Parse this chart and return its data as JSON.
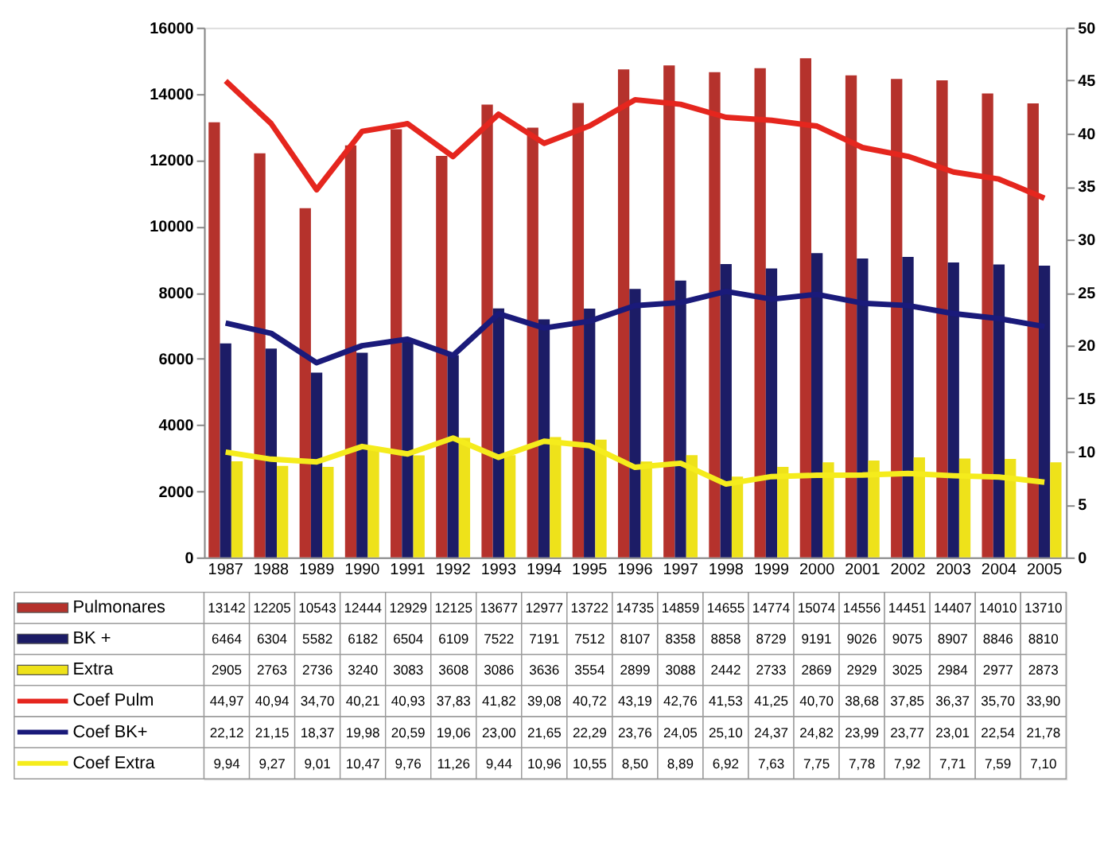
{
  "chart_data": {
    "type": "bar",
    "categories": [
      "1987",
      "1988",
      "1989",
      "1990",
      "1991",
      "1992",
      "1993",
      "1994",
      "1995",
      "1996",
      "1997",
      "1998",
      "1999",
      "2000",
      "2001",
      "2002",
      "2003",
      "2004",
      "2005"
    ],
    "legend": "bottom left",
    "ylim": [
      0,
      16000
    ],
    "yticks": [
      0,
      2000,
      4000,
      6000,
      8000,
      10000,
      12000,
      14000,
      16000
    ],
    "y2lim": [
      0,
      50
    ],
    "y2ticks": [
      0,
      5,
      10,
      15,
      20,
      25,
      30,
      35,
      40,
      45,
      50
    ],
    "series": [
      {
        "name": "Pulmonares",
        "color": "#b5322c",
        "values": [
          13142,
          12205,
          10543,
          12444,
          12929,
          12125,
          13677,
          12977,
          13722,
          14735,
          14859,
          14655,
          14774,
          15074,
          14556,
          14451,
          14407,
          14010,
          13710
        ],
        "value_labels": [
          "13142",
          "12205",
          "10543",
          "12444",
          "12929",
          "12125",
          "13677",
          "12977",
          "13722",
          "14735",
          "14859",
          "14655",
          "14774",
          "15074",
          "14556",
          "14451",
          "14407",
          "14010",
          "13710"
        ]
      },
      {
        "name": "BK +",
        "color": "#1c1c66",
        "values": [
          6464,
          6304,
          5582,
          6182,
          6504,
          6109,
          7522,
          7191,
          7512,
          8107,
          8358,
          8858,
          8729,
          9191,
          9026,
          9075,
          8907,
          8846,
          8810
        ],
        "value_labels": [
          "6464",
          "6304",
          "5582",
          "6182",
          "6504",
          "6109",
          "7522",
          "7191",
          "7512",
          "8107",
          "8358",
          "8858",
          "8729",
          "9191",
          "9026",
          "9075",
          "8907",
          "8846",
          "8810"
        ]
      },
      {
        "name": "Extra",
        "color": "#eee21a",
        "values": [
          2905,
          2763,
          2736,
          3240,
          3083,
          3608,
          3086,
          3636,
          3554,
          2899,
          3088,
          2442,
          2733,
          2869,
          2929,
          3025,
          2984,
          2977,
          2873
        ],
        "value_labels": [
          "2905",
          "2763",
          "2736",
          "3240",
          "3083",
          "3608",
          "3086",
          "3636",
          "3554",
          "2899",
          "3088",
          "2442",
          "2733",
          "2869",
          "2929",
          "3025",
          "2984",
          "2977",
          "2873"
        ]
      },
      {
        "name": "Coef Pulm",
        "type": "line",
        "axis": "y2",
        "color": "#e5261e",
        "values": [
          44.97,
          40.94,
          34.7,
          40.21,
          40.93,
          37.83,
          41.82,
          39.08,
          40.72,
          43.19,
          42.76,
          41.53,
          41.25,
          40.7,
          38.68,
          37.85,
          36.37,
          35.7,
          33.9
        ],
        "value_labels": [
          "44,97",
          "40,94",
          "34,70",
          "40,21",
          "40,93",
          "37,83",
          "41,82",
          "39,08",
          "40,72",
          "43,19",
          "42,76",
          "41,53",
          "41,25",
          "40,70",
          "38,68",
          "37,85",
          "36,37",
          "35,70",
          "33,90"
        ]
      },
      {
        "name": "Coef BK+",
        "type": "line",
        "axis": "y2",
        "color": "#1a1a7a",
        "values": [
          22.12,
          21.15,
          18.37,
          19.98,
          20.59,
          19.06,
          23.0,
          21.65,
          22.29,
          23.76,
          24.05,
          25.1,
          24.37,
          24.82,
          23.99,
          23.77,
          23.01,
          22.54,
          21.78
        ],
        "value_labels": [
          "22,12",
          "21,15",
          "18,37",
          "19,98",
          "20,59",
          "19,06",
          "23,00",
          "21,65",
          "22,29",
          "23,76",
          "24,05",
          "25,10",
          "24,37",
          "24,82",
          "23,99",
          "23,77",
          "23,01",
          "22,54",
          "21,78"
        ]
      },
      {
        "name": "Coef Extra",
        "type": "line",
        "axis": "y2",
        "color": "#f5ec1c",
        "values": [
          9.94,
          9.27,
          9.01,
          10.47,
          9.76,
          11.26,
          9.44,
          10.96,
          10.55,
          8.5,
          8.89,
          6.92,
          7.63,
          7.75,
          7.78,
          7.92,
          7.71,
          7.59,
          7.1
        ],
        "value_labels": [
          "9,94",
          "9,27",
          "9,01",
          "10,47",
          "9,76",
          "11,26",
          "9,44",
          "10,96",
          "10,55",
          "8,50",
          "8,89",
          "6,92",
          "7,63",
          "7,75",
          "7,78",
          "7,92",
          "7,71",
          "7,59",
          "7,10"
        ]
      }
    ]
  }
}
